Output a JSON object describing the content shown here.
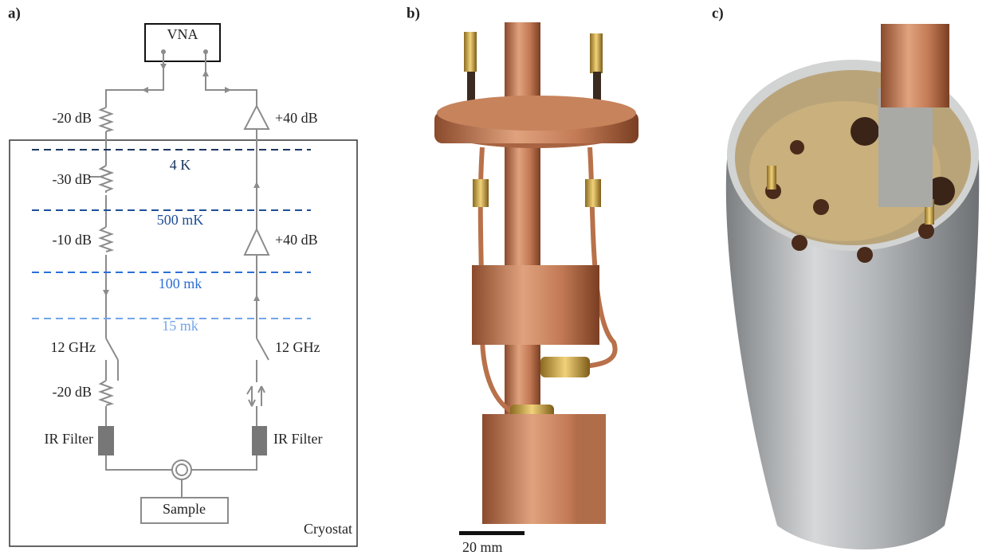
{
  "panels": {
    "a": {
      "label": "a)",
      "instrument": "VNA",
      "enclosure": "Cryostat",
      "sample": "Sample",
      "stages": [
        "4 K",
        "500 mK",
        "100 mk",
        "15 mk"
      ],
      "input_line": [
        "-20 dB",
        "-30 dB",
        "-10 dB",
        "12 GHz",
        "-20 dB",
        "IR Filter"
      ],
      "output_line": [
        "+40 dB",
        "+40 dB",
        "12 GHz",
        "IR Filter"
      ]
    },
    "b": {
      "label": "b)",
      "scale_bar": "20 mm"
    },
    "c": {
      "label": "c)"
    }
  }
}
